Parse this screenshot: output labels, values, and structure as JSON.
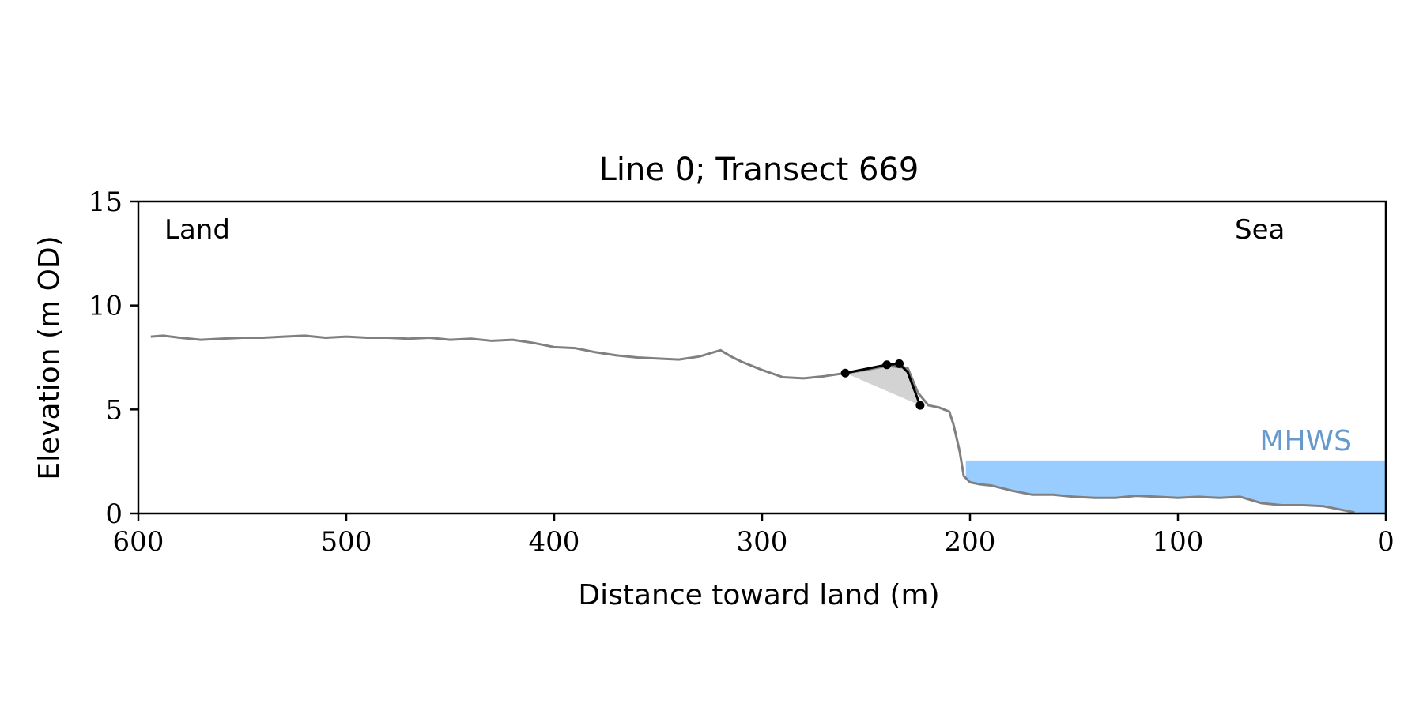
{
  "chart_data": {
    "type": "line",
    "title": "Line 0; Transect 669",
    "xlabel": "Distance toward land (m)",
    "ylabel": "Elevation (m OD)",
    "xlim": [
      600,
      0
    ],
    "ylim": [
      0,
      15
    ],
    "x_ticks": [
      "600",
      "500",
      "400",
      "300",
      "200",
      "100",
      "0"
    ],
    "y_ticks": [
      "0",
      "5",
      "10",
      "15"
    ],
    "grid": false,
    "annotations": {
      "land_label": "Land",
      "sea_label": "Sea",
      "mhws_label": "MHWS"
    },
    "mhws": {
      "elevation": 2.55,
      "x_from": 202,
      "x_to": 0
    },
    "profile": {
      "x": [
        594,
        588,
        580,
        570,
        560,
        550,
        540,
        530,
        520,
        510,
        500,
        490,
        480,
        470,
        460,
        450,
        440,
        430,
        420,
        410,
        400,
        390,
        380,
        370,
        360,
        350,
        340,
        330,
        325,
        320,
        315,
        310,
        300,
        290,
        280,
        270,
        260,
        250,
        240,
        230,
        225,
        220,
        215,
        210,
        208,
        205,
        203,
        200,
        195,
        190,
        180,
        170,
        160,
        150,
        140,
        130,
        120,
        110,
        100,
        90,
        80,
        70,
        60,
        50,
        40,
        30,
        20,
        15
      ],
      "y": [
        8.5,
        8.55,
        8.45,
        8.35,
        8.4,
        8.45,
        8.45,
        8.5,
        8.55,
        8.45,
        8.5,
        8.45,
        8.45,
        8.4,
        8.45,
        8.35,
        8.4,
        8.3,
        8.35,
        8.2,
        8.0,
        7.95,
        7.75,
        7.6,
        7.5,
        7.45,
        7.4,
        7.55,
        7.7,
        7.85,
        7.55,
        7.3,
        6.9,
        6.55,
        6.5,
        6.6,
        6.75,
        6.9,
        7.1,
        7.0,
        5.8,
        5.2,
        5.1,
        4.9,
        4.3,
        3.0,
        1.8,
        1.5,
        1.4,
        1.35,
        1.1,
        0.9,
        0.9,
        0.8,
        0.75,
        0.75,
        0.85,
        0.8,
        0.75,
        0.8,
        0.75,
        0.8,
        0.5,
        0.4,
        0.4,
        0.35,
        0.15,
        0.05
      ]
    },
    "cliff_top_line": {
      "x": [
        260,
        240,
        234,
        230,
        224
      ],
      "y": [
        6.75,
        7.15,
        7.2,
        6.8,
        5.2
      ]
    },
    "cliff_points": {
      "x": [
        260,
        240,
        234,
        224
      ],
      "y": [
        6.75,
        7.15,
        7.2,
        5.2
      ]
    },
    "colors": {
      "profile": "#808080",
      "cliff_line": "#000000",
      "cliff_fill": "#d3d3d3",
      "water": "#99ccff",
      "mhws_text": "#6699cc",
      "axis": "#000000"
    }
  }
}
